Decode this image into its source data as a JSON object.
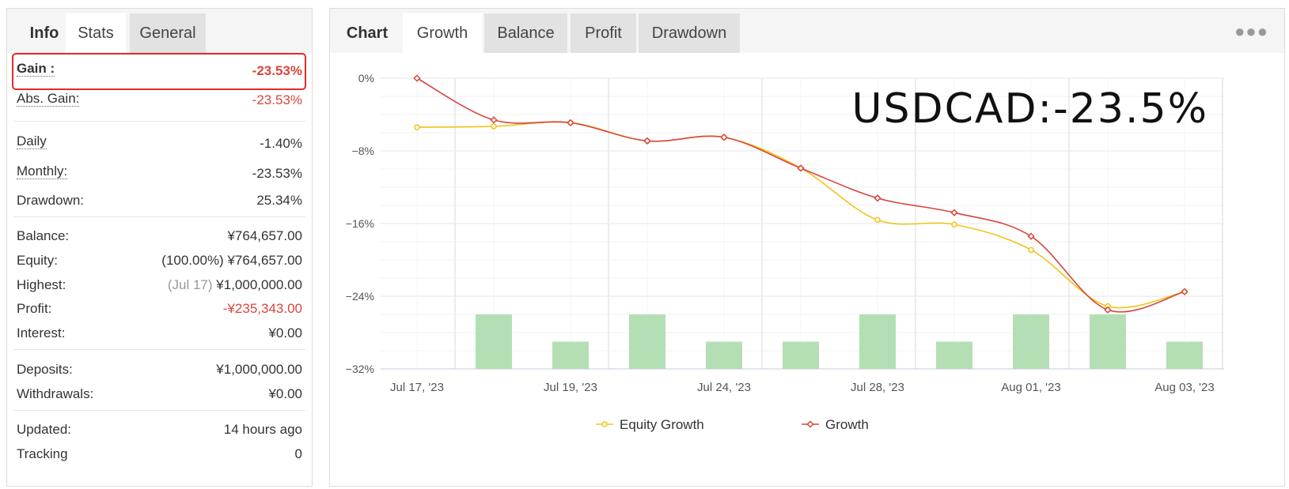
{
  "left_tabs": {
    "title": "Info",
    "stats": "Stats",
    "general": "General"
  },
  "info": {
    "gain_label": "Gain :",
    "gain_value": "-23.53%",
    "abs_gain_label": "Abs. Gain:",
    "abs_gain_value": "-23.53%",
    "daily_label": "Daily",
    "daily_value": "-1.40%",
    "monthly_label": "Monthly:",
    "monthly_value": "-23.53%",
    "drawdown_label": "Drawdown:",
    "drawdown_value": "25.34%",
    "balance_label": "Balance:",
    "balance_value": "¥764,657.00",
    "equity_label": "Equity:",
    "equity_pct": "(100.00%)",
    "equity_value": "¥764,657.00",
    "highest_label": "Highest:",
    "highest_date": "(Jul 17)",
    "highest_value": "¥1,000,000.00",
    "profit_label": "Profit:",
    "profit_value": "-¥235,343.00",
    "interest_label": "Interest:",
    "interest_value": "¥0.00",
    "deposits_label": "Deposits:",
    "deposits_value": "¥1,000,000.00",
    "withdrawals_label": "Withdrawals:",
    "withdrawals_value": "¥0.00",
    "updated_label": "Updated:",
    "updated_value": "14 hours ago",
    "tracking_label": "Tracking",
    "tracking_value": "0"
  },
  "chart_tabs": {
    "title": "Chart",
    "growth": "Growth",
    "balance": "Balance",
    "profit": "Profit",
    "drawdown": "Drawdown"
  },
  "chart_data": {
    "type": "line",
    "overlay_text": "USDCAD:-23.5%",
    "x": [
      "Jul 17, '23",
      "",
      "Jul 19, '23",
      "",
      "Jul 24, '23",
      "",
      "Jul 28, '23",
      "",
      "Aug 01, '23",
      "",
      "Aug 03, '23"
    ],
    "x_tick_labels": [
      "Jul 17, '23",
      "Jul 19, '23",
      "Jul 24, '23",
      "Jul 28, '23",
      "Aug 01, '23",
      "Aug 03, '23"
    ],
    "y_tick_labels": [
      "0%",
      "−8%",
      "−16%",
      "−24%",
      "−32%"
    ],
    "ylim": [
      -32,
      0
    ],
    "grid": true,
    "legend": "bottom-center",
    "series": [
      {
        "name": "Equity Growth",
        "color": "#f0c419",
        "values": [
          -5.4,
          -5.3,
          -4.9,
          -6.9,
          -6.5,
          -9.9,
          -15.6,
          -16.1,
          -18.9,
          -25.1,
          -23.5
        ]
      },
      {
        "name": "Growth",
        "color": "#d9453d",
        "values": [
          0,
          -4.6,
          -4.9,
          -6.9,
          -6.5,
          -9.9,
          -13.2,
          -14.8,
          -17.4,
          -25.5,
          -23.5
        ]
      }
    ],
    "bars": {
      "color": "#b4dfb4",
      "values": [
        null,
        -26.0,
        -29.0,
        -26.0,
        -29.0,
        -29.0,
        -26.0,
        -29.0,
        -26.0,
        -26.0,
        -29.0
      ]
    }
  }
}
